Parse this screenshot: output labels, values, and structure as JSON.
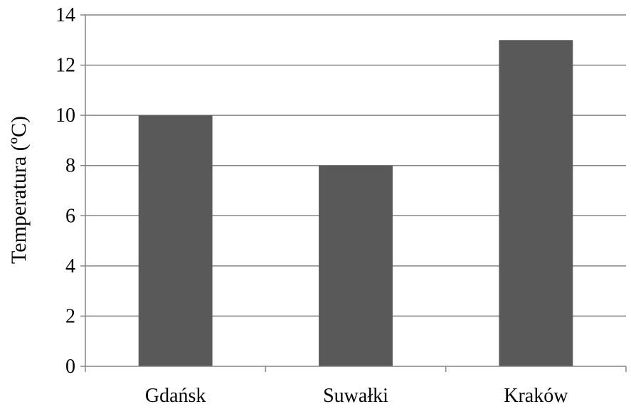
{
  "chart_data": {
    "type": "bar",
    "categories": [
      "Gdańsk",
      "Suwałki",
      "Kraków"
    ],
    "values": [
      10,
      8,
      13
    ],
    "title": "",
    "xlabel": "",
    "ylabel": "Temperatura (ºC)",
    "ylim": [
      0,
      14
    ],
    "yticks": [
      "0",
      "2",
      "4",
      "6",
      "8",
      "10",
      "12",
      "14"
    ],
    "grid": true,
    "legend": "none",
    "bar_color": "#595959",
    "grid_color": "#868686",
    "axis_color": "#868686"
  }
}
